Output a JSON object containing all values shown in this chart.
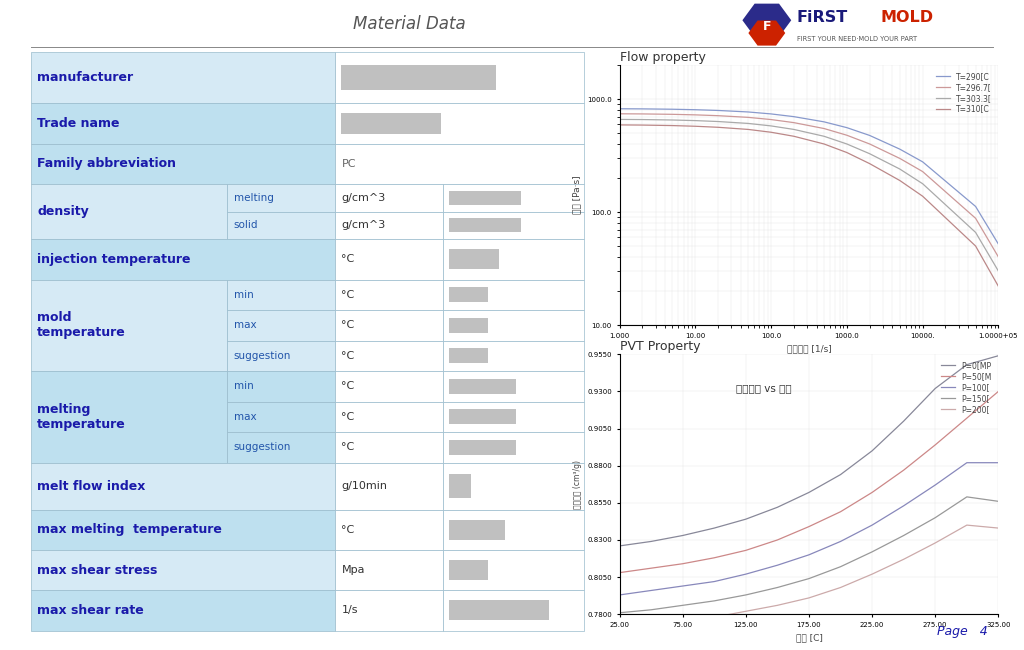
{
  "title": "Material Data",
  "page_label": "Page   4",
  "bg_color": "#ffffff",
  "table_light_bg": "#d6eaf5",
  "table_medium_bg": "#bee0ef",
  "table_white_bg": "#ffffff",
  "table_border_color": "#99bbcc",
  "label_color": "#1a1aaa",
  "sub_label_color": "#2255aa",
  "flow_title": "Flow property",
  "flow_xlabel": "剪切速率 [1/s]",
  "flow_ylabel": "箘度 [Pa·s]",
  "flow_curves": [
    {
      "label": "T=290[C",
      "color": "#8899cc",
      "temps": [
        1,
        2,
        5,
        10,
        20,
        50,
        100,
        200,
        500,
        1000,
        2000,
        5000,
        10000,
        50000,
        100000
      ],
      "visc": [
        820,
        818,
        812,
        804,
        792,
        768,
        738,
        698,
        628,
        558,
        476,
        360,
        278,
        112,
        52
      ]
    },
    {
      "label": "T=296.7[",
      "color": "#cc9999",
      "temps": [
        1,
        2,
        5,
        10,
        20,
        50,
        100,
        200,
        500,
        1000,
        2000,
        5000,
        10000,
        50000,
        100000
      ],
      "visc": [
        740,
        738,
        732,
        724,
        712,
        688,
        658,
        618,
        548,
        478,
        400,
        298,
        228,
        88,
        40
      ]
    },
    {
      "label": "T=303.3[",
      "color": "#aaaaaa",
      "temps": [
        1,
        2,
        5,
        10,
        20,
        50,
        100,
        200,
        500,
        1000,
        2000,
        5000,
        10000,
        50000,
        100000
      ],
      "visc": [
        660,
        658,
        652,
        644,
        632,
        608,
        578,
        538,
        468,
        400,
        328,
        240,
        178,
        66,
        30
      ]
    },
    {
      "label": "T=310[C",
      "color": "#bb8888",
      "temps": [
        1,
        2,
        5,
        10,
        20,
        50,
        100,
        200,
        500,
        1000,
        2000,
        5000,
        10000,
        50000,
        100000
      ],
      "visc": [
        590,
        588,
        582,
        574,
        562,
        538,
        508,
        468,
        400,
        336,
        268,
        190,
        138,
        50,
        22
      ]
    }
  ],
  "flow_ylim_log": [
    10,
    2000
  ],
  "flow_xlim": [
    1,
    100000
  ],
  "pvt_title": "PVT Property",
  "pvt_inner_title": "体积比容 vs 温度",
  "pvt_xlabel": "温度 [C]",
  "pvt_ylabel": "体积比容 (cm³/g)",
  "pvt_curves": [
    {
      "label": "P=0[MP",
      "color": "#888899",
      "temps": [
        25,
        50,
        75,
        100,
        125,
        150,
        175,
        200,
        225,
        250,
        275,
        300,
        325
      ],
      "vol": [
        0.826,
        0.829,
        0.833,
        0.838,
        0.844,
        0.852,
        0.862,
        0.874,
        0.89,
        0.91,
        0.932,
        0.948,
        0.954
      ]
    },
    {
      "label": "P=50[M",
      "color": "#cc8888",
      "temps": [
        25,
        50,
        75,
        100,
        125,
        150,
        175,
        200,
        225,
        250,
        275,
        300,
        325
      ],
      "vol": [
        0.808,
        0.811,
        0.814,
        0.818,
        0.823,
        0.83,
        0.839,
        0.849,
        0.862,
        0.877,
        0.894,
        0.912,
        0.93
      ]
    },
    {
      "label": "P=100[",
      "color": "#8888bb",
      "temps": [
        25,
        50,
        75,
        100,
        125,
        150,
        175,
        200,
        225,
        250,
        275,
        300,
        325
      ],
      "vol": [
        0.793,
        0.796,
        0.799,
        0.802,
        0.807,
        0.813,
        0.82,
        0.829,
        0.84,
        0.853,
        0.867,
        0.882,
        0.882
      ]
    },
    {
      "label": "P=150[",
      "color": "#999999",
      "temps": [
        25,
        50,
        75,
        100,
        125,
        150,
        175,
        200,
        225,
        250,
        275,
        300,
        325
      ],
      "vol": [
        0.781,
        0.783,
        0.786,
        0.789,
        0.793,
        0.798,
        0.804,
        0.812,
        0.822,
        0.833,
        0.845,
        0.859,
        0.856
      ]
    },
    {
      "label": "P=200[",
      "color": "#ccaaaa",
      "temps": [
        25,
        50,
        75,
        100,
        125,
        150,
        175,
        200,
        225,
        250,
        275,
        300,
        325
      ],
      "vol": [
        0.771,
        0.773,
        0.775,
        0.778,
        0.782,
        0.786,
        0.791,
        0.798,
        0.807,
        0.817,
        0.828,
        0.84,
        0.838
      ]
    }
  ],
  "pvt_ylim": [
    0.78,
    0.955
  ],
  "pvt_xlim": [
    25,
    325
  ],
  "pvt_yticks": [
    0.78,
    0.805,
    0.83,
    0.855,
    0.88,
    0.905,
    0.93,
    0.955
  ],
  "pvt_xticks": [
    25.0,
    75.0,
    125.0,
    175.0,
    225.0,
    275.0,
    325.0
  ]
}
